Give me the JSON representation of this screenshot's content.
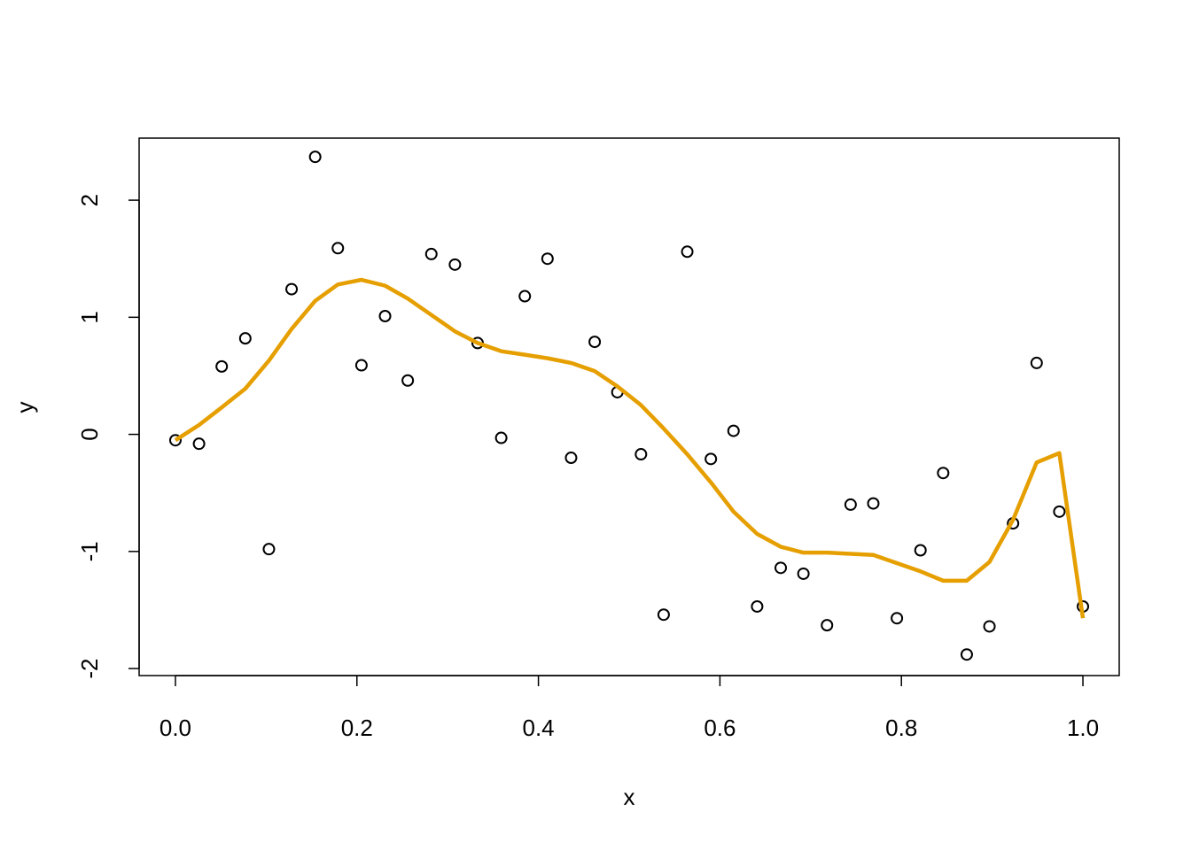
{
  "chart_data": {
    "type": "scatter",
    "x_label": "x",
    "y_label": "y",
    "x": [
      0,
      0.026,
      0.051,
      0.077,
      0.103,
      0.128,
      0.154,
      0.179,
      0.205,
      0.231,
      0.256,
      0.282,
      0.308,
      0.333,
      0.359,
      0.385,
      0.41,
      0.436,
      0.462,
      0.487,
      0.513,
      0.538,
      0.564,
      0.59,
      0.615,
      0.641,
      0.667,
      0.692,
      0.718,
      0.744,
      0.769,
      0.795,
      0.821,
      0.846,
      0.872,
      0.897,
      0.923,
      0.949,
      0.974,
      1.0
    ],
    "series": [
      {
        "type": "scatter",
        "color": "#000000",
        "values": [
          -0.05,
          -0.08,
          0.58,
          0.82,
          -0.98,
          1.24,
          2.37,
          1.59,
          0.59,
          1.01,
          0.46,
          1.54,
          1.45,
          0.78,
          -0.03,
          1.18,
          1.5,
          -0.2,
          0.79,
          0.36,
          -0.17,
          -1.54,
          1.56,
          -0.21,
          0.03,
          -1.47,
          -1.14,
          -1.19,
          -1.63,
          -0.6,
          -0.59,
          -1.57,
          -0.99,
          -0.33,
          -1.88,
          -1.64,
          -0.76,
          0.61,
          -0.66,
          -1.47
        ]
      },
      {
        "type": "line",
        "color": "#E69F00",
        "values": [
          -0.05,
          0.08,
          0.23,
          0.39,
          0.63,
          0.9,
          1.14,
          1.28,
          1.32,
          1.27,
          1.16,
          1.02,
          0.88,
          0.78,
          0.71,
          0.68,
          0.65,
          0.61,
          0.54,
          0.41,
          0.25,
          0.05,
          -0.17,
          -0.41,
          -0.66,
          -0.85,
          -0.96,
          -1.01,
          -1.01,
          -1.02,
          -1.03,
          -1.1,
          -1.17,
          -1.25,
          -1.25,
          -1.09,
          -0.73,
          -0.24,
          -0.16,
          -1.57
        ]
      }
    ],
    "xlim": [
      -0.04,
      1.04
    ],
    "ylim": [
      -2.06,
      2.53
    ],
    "xticks": [
      {
        "value": 0,
        "label": "0.0"
      },
      0.2,
      0.4,
      0.6,
      0.8,
      {
        "value": 1,
        "label": "1.0"
      }
    ],
    "yticks": [
      -2,
      -1,
      0,
      1,
      2
    ]
  }
}
